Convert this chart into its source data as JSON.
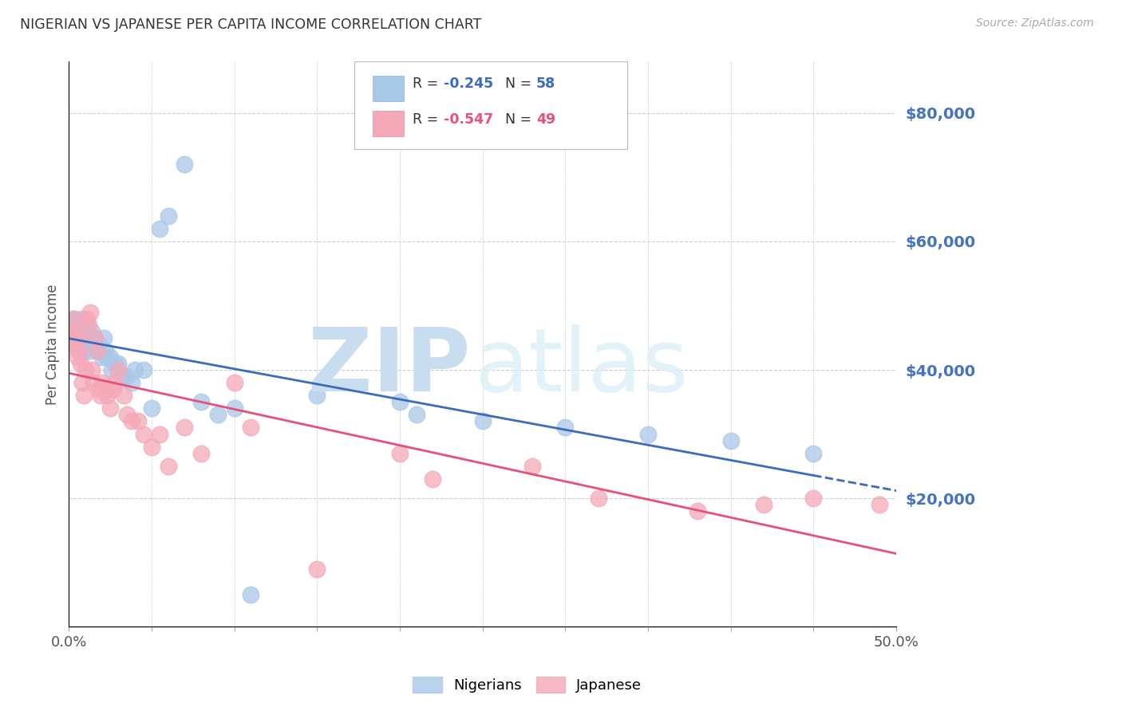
{
  "title": "NIGERIAN VS JAPANESE PER CAPITA INCOME CORRELATION CHART",
  "source": "Source: ZipAtlas.com",
  "ylabel": "Per Capita Income",
  "legend_labels": [
    "Nigerians",
    "Japanese"
  ],
  "legend_r_n": [
    "R = -0.245   N = 58",
    "R = -0.547   N = 49"
  ],
  "nigerians_color": "#a8c8e8",
  "japanese_color": "#f4a8b8",
  "line_nigerian_color": "#3a6bbf",
  "line_japanese_color": "#e8507a",
  "background": "#ffffff",
  "grid_color": "#cccccc",
  "ytick_color": "#4472c4",
  "title_color": "#333333",
  "yticks": [
    0,
    20000,
    40000,
    60000,
    80000
  ],
  "ytick_labels": [
    "",
    "$20,000",
    "$40,000",
    "$60,000",
    "$80,000"
  ],
  "xmin": 0.0,
  "xmax": 0.5,
  "ymin": 0,
  "ymax": 88000,
  "nigerian_x": [
    0.001,
    0.001,
    0.002,
    0.002,
    0.003,
    0.003,
    0.004,
    0.004,
    0.005,
    0.005,
    0.005,
    0.006,
    0.006,
    0.007,
    0.007,
    0.008,
    0.008,
    0.009,
    0.009,
    0.01,
    0.01,
    0.011,
    0.012,
    0.013,
    0.014,
    0.015,
    0.016,
    0.017,
    0.018,
    0.02,
    0.021,
    0.022,
    0.023,
    0.025,
    0.026,
    0.028,
    0.03,
    0.032,
    0.035,
    0.038,
    0.04,
    0.045,
    0.05,
    0.055,
    0.06,
    0.07,
    0.08,
    0.09,
    0.1,
    0.11,
    0.15,
    0.2,
    0.21,
    0.25,
    0.3,
    0.35,
    0.4,
    0.45
  ],
  "nigerian_y": [
    46000,
    44000,
    48000,
    45000,
    48000,
    46000,
    45000,
    44000,
    46000,
    45000,
    44000,
    47000,
    45000,
    46000,
    44000,
    48000,
    46000,
    45000,
    43000,
    47000,
    44000,
    46000,
    45000,
    43000,
    46000,
    44000,
    45000,
    43000,
    44000,
    42000,
    45000,
    43000,
    42000,
    42000,
    40000,
    41000,
    41000,
    39000,
    39000,
    38000,
    40000,
    40000,
    34000,
    62000,
    64000,
    72000,
    35000,
    33000,
    34000,
    5000,
    36000,
    35000,
    33000,
    32000,
    31000,
    30000,
    29000,
    27000
  ],
  "japanese_x": [
    0.001,
    0.002,
    0.003,
    0.003,
    0.004,
    0.005,
    0.006,
    0.006,
    0.007,
    0.008,
    0.009,
    0.01,
    0.011,
    0.012,
    0.013,
    0.014,
    0.015,
    0.016,
    0.017,
    0.018,
    0.019,
    0.02,
    0.022,
    0.023,
    0.025,
    0.027,
    0.028,
    0.03,
    0.033,
    0.035,
    0.038,
    0.042,
    0.045,
    0.05,
    0.055,
    0.06,
    0.07,
    0.08,
    0.1,
    0.11,
    0.15,
    0.2,
    0.22,
    0.28,
    0.32,
    0.38,
    0.42,
    0.45,
    0.49
  ],
  "japanese_y": [
    46000,
    44000,
    48000,
    46000,
    45000,
    42000,
    45000,
    43000,
    41000,
    38000,
    36000,
    40000,
    48000,
    47000,
    49000,
    40000,
    38000,
    45000,
    43000,
    37000,
    36000,
    38000,
    37000,
    36000,
    34000,
    37000,
    38000,
    40000,
    36000,
    33000,
    32000,
    32000,
    30000,
    28000,
    30000,
    25000,
    31000,
    27000,
    38000,
    31000,
    9000,
    27000,
    23000,
    25000,
    20000,
    18000,
    19000,
    20000,
    19000
  ]
}
